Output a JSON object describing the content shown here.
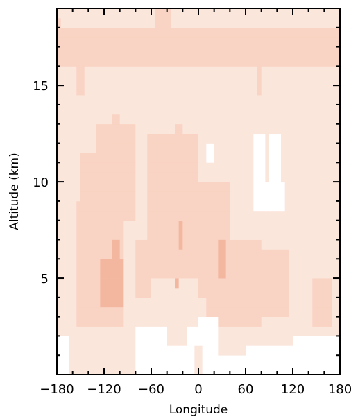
{
  "chart_data": {
    "type": "heatmap",
    "title": "",
    "xlabel": "Longitude",
    "ylabel": "Altitude (km)",
    "xlim": [
      -180,
      180
    ],
    "ylim": [
      0,
      19
    ],
    "x_ticks": [
      -180,
      -120,
      -60,
      0,
      60,
      120,
      180
    ],
    "x_tick_labels": [
      "−180",
      "−120",
      "−60",
      "0",
      "60",
      "120",
      "180"
    ],
    "y_ticks": [
      5,
      10,
      15
    ],
    "y_tick_labels": [
      "5",
      "10",
      "15"
    ],
    "colors": [
      "#ffffff",
      "#fbe6dc",
      "#f9d3c3",
      "#f3b7a0"
    ],
    "level_legend": "0 = white, 1 = lightest peach, 2 = medium peach, 3 = darkest peach",
    "grid": false,
    "cell_lon_step": 5,
    "cell_alt_step": 0.5,
    "regions": [
      {
        "level": 1,
        "lon": [
          -180,
          180
        ],
        "alt": [
          0,
          19
        ]
      },
      {
        "level": 2,
        "lon": [
          -180,
          180
        ],
        "alt": [
          16,
          18
        ]
      },
      {
        "level": 2,
        "lon": [
          -180,
          -175
        ],
        "alt": [
          18,
          18.5
        ]
      },
      {
        "level": 2,
        "lon": [
          -155,
          -145
        ],
        "alt": [
          14.5,
          16
        ]
      },
      {
        "level": 2,
        "lon": [
          -55,
          -35
        ],
        "alt": [
          18,
          19
        ]
      },
      {
        "level": 2,
        "lon": [
          75,
          80
        ],
        "alt": [
          14.5,
          16
        ]
      },
      {
        "level": 2,
        "lon": [
          -130,
          -80
        ],
        "alt": [
          8,
          13
        ]
      },
      {
        "level": 2,
        "lon": [
          -155,
          -95
        ],
        "alt": [
          2.5,
          9
        ]
      },
      {
        "level": 2,
        "lon": [
          -150,
          -130
        ],
        "alt": [
          9,
          11.5
        ]
      },
      {
        "level": 2,
        "lon": [
          -110,
          -100
        ],
        "alt": [
          12.5,
          13.5
        ]
      },
      {
        "level": 2,
        "lon": [
          -65,
          0
        ],
        "alt": [
          5,
          12.5
        ]
      },
      {
        "level": 2,
        "lon": [
          -80,
          -60
        ],
        "alt": [
          4,
          7
        ]
      },
      {
        "level": 2,
        "lon": [
          -30,
          -20
        ],
        "alt": [
          12,
          13
        ]
      },
      {
        "level": 2,
        "lon": [
          0,
          40
        ],
        "alt": [
          4,
          10
        ]
      },
      {
        "level": 2,
        "lon": [
          10,
          80
        ],
        "alt": [
          2.5,
          7
        ]
      },
      {
        "level": 2,
        "lon": [
          80,
          115
        ],
        "alt": [
          3,
          6.5
        ]
      },
      {
        "level": 2,
        "lon": [
          145,
          170
        ],
        "alt": [
          2.5,
          5
        ]
      },
      {
        "level": 3,
        "lon": [
          -125,
          -95
        ],
        "alt": [
          3.5,
          6
        ]
      },
      {
        "level": 3,
        "lon": [
          -110,
          -100
        ],
        "alt": [
          6,
          7
        ]
      },
      {
        "level": 3,
        "lon": [
          -25,
          -20
        ],
        "alt": [
          6.5,
          8
        ]
      },
      {
        "level": 3,
        "lon": [
          -30,
          -25
        ],
        "alt": [
          4.5,
          5
        ]
      },
      {
        "level": 3,
        "lon": [
          25,
          35
        ],
        "alt": [
          5,
          7
        ]
      },
      {
        "level": 0,
        "lon": [
          70,
          85
        ],
        "alt": [
          8.5,
          12.5
        ]
      },
      {
        "level": 0,
        "lon": [
          85,
          110
        ],
        "alt": [
          8.5,
          10
        ]
      },
      {
        "level": 0,
        "lon": [
          90,
          105
        ],
        "alt": [
          10,
          12.5
        ]
      },
      {
        "level": 0,
        "lon": [
          10,
          20
        ],
        "alt": [
          11,
          12
        ]
      },
      {
        "level": 0,
        "lon": [
          -180,
          -165
        ],
        "alt": [
          0,
          2
        ]
      },
      {
        "level": 0,
        "lon": [
          -80,
          -40
        ],
        "alt": [
          0,
          2.5
        ]
      },
      {
        "level": 0,
        "lon": [
          -40,
          -15
        ],
        "alt": [
          0,
          1.5
        ]
      },
      {
        "level": 0,
        "lon": [
          -15,
          0
        ],
        "alt": [
          0,
          2.5
        ]
      },
      {
        "level": 0,
        "lon": [
          0,
          25
        ],
        "alt": [
          0,
          3
        ]
      },
      {
        "level": 0,
        "lon": [
          25,
          180
        ],
        "alt": [
          0,
          1
        ]
      },
      {
        "level": 0,
        "lon": [
          60,
          120
        ],
        "alt": [
          1,
          1.5
        ]
      },
      {
        "level": 0,
        "lon": [
          120,
          180
        ],
        "alt": [
          1,
          2
        ]
      },
      {
        "level": 1,
        "lon": [
          -5,
          5
        ],
        "alt": [
          0,
          1.5
        ]
      }
    ]
  }
}
